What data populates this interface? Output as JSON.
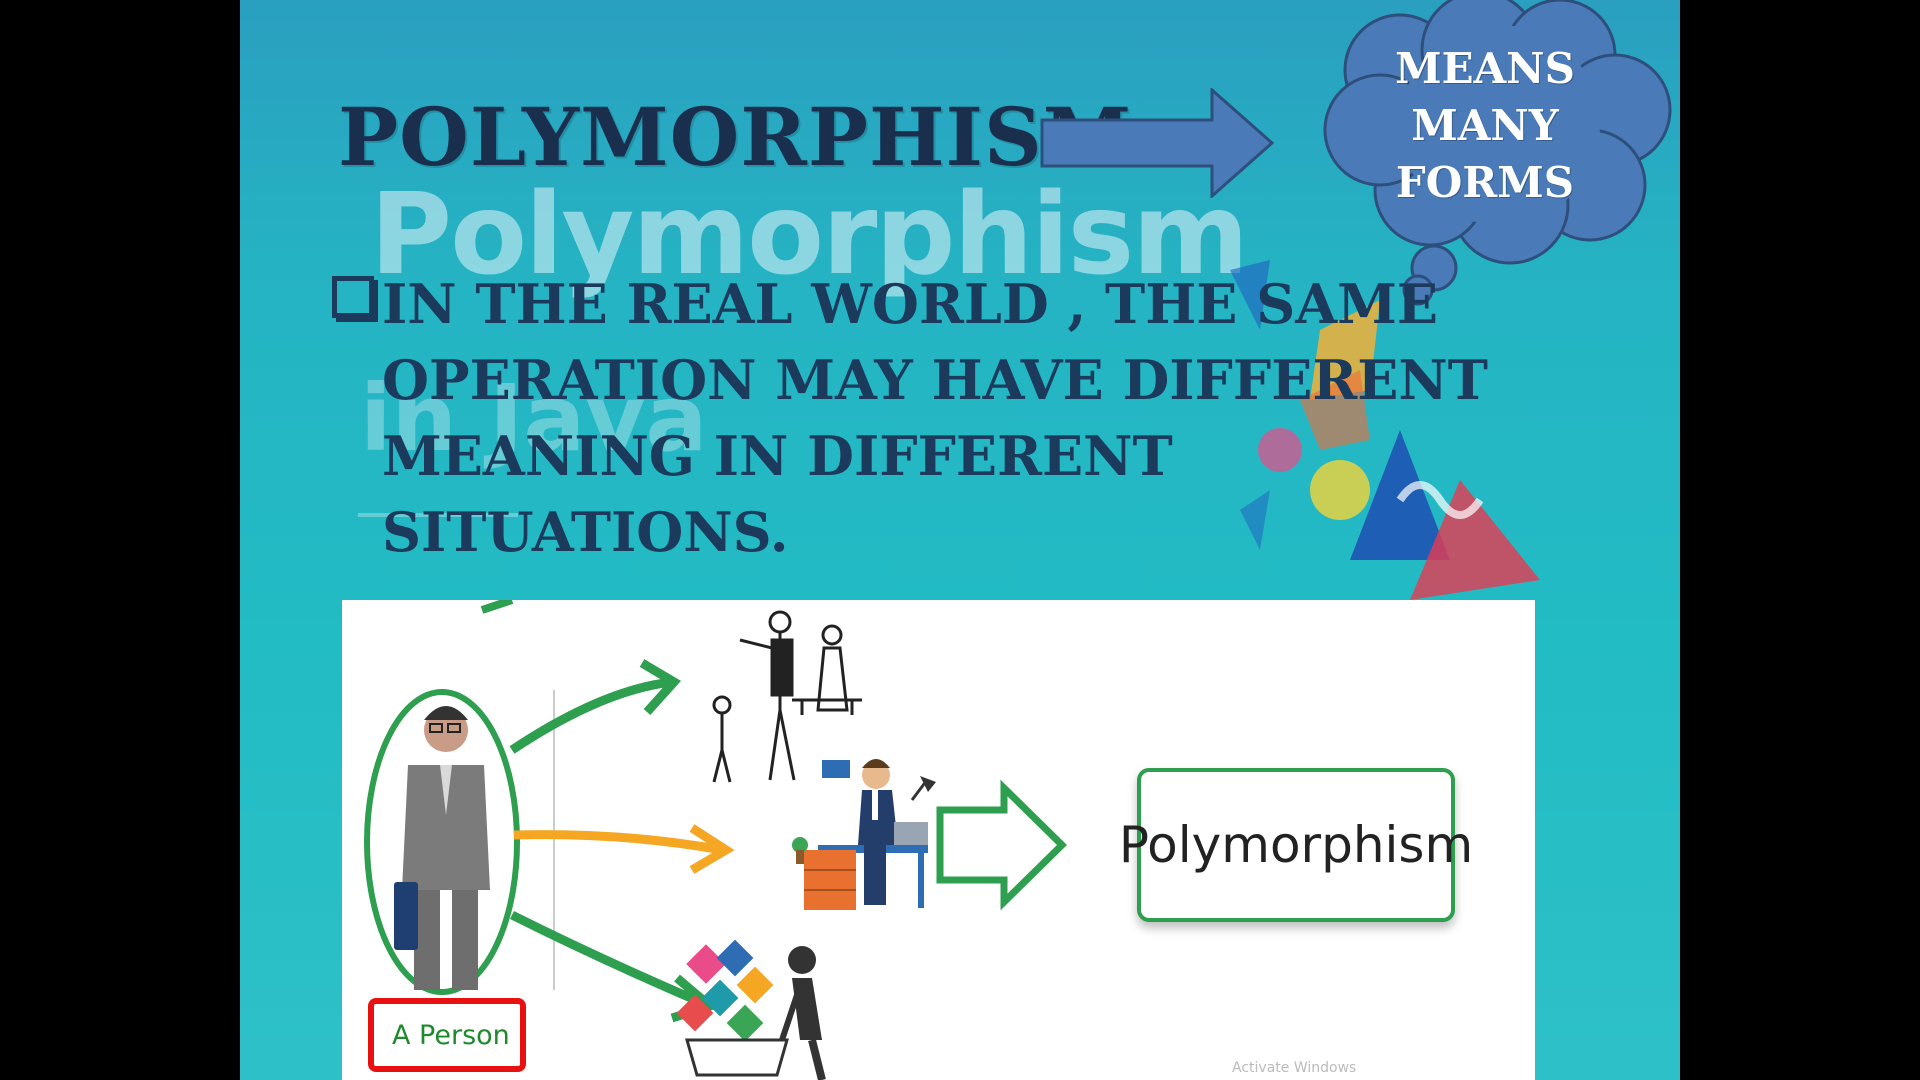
{
  "slide": {
    "title": "POLYMORPHISM",
    "cloud_lines": [
      "MEANS",
      "MANY",
      "FORMS"
    ],
    "bullet_text": "In the real world , the same operation may have different meaning in different situations.",
    "background_watermark_title": "Polymorphism",
    "background_watermark_subtitle": "in Java"
  },
  "illustration": {
    "result_label": "Polymorphism",
    "person_label": "A Person",
    "faded_watermark": "Activate Windows"
  },
  "colors": {
    "title": "#1a2f4e",
    "arrow_fill": "#4a7bb8",
    "cloud_fill": "#4a7bb8",
    "green_arrow": "#2e9e4f",
    "orange_arrow": "#f5a623",
    "person_box_border": "#e81010"
  },
  "icons": [
    "right-arrow-icon",
    "thought-cloud-icon",
    "checkbox-bullet-icon",
    "person-icon",
    "teacher-icon",
    "office-worker-icon",
    "shopper-icon"
  ]
}
